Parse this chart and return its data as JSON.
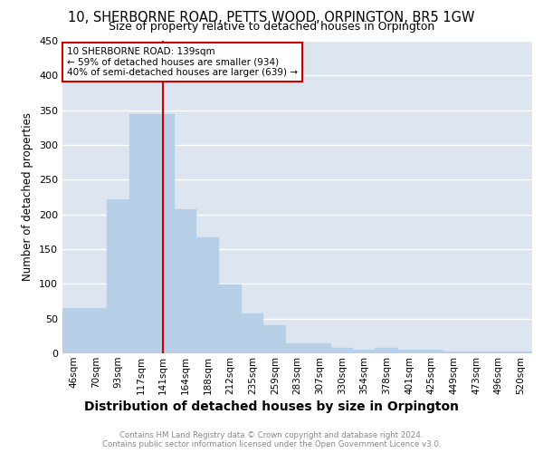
{
  "title": "10, SHERBORNE ROAD, PETTS WOOD, ORPINGTON, BR5 1GW",
  "subtitle": "Size of property relative to detached houses in Orpington",
  "xlabel": "Distribution of detached houses by size in Orpington",
  "ylabel": "Number of detached properties",
  "categories": [
    "46sqm",
    "70sqm",
    "93sqm",
    "117sqm",
    "141sqm",
    "164sqm",
    "188sqm",
    "212sqm",
    "235sqm",
    "259sqm",
    "283sqm",
    "307sqm",
    "330sqm",
    "354sqm",
    "378sqm",
    "401sqm",
    "425sqm",
    "449sqm",
    "473sqm",
    "496sqm",
    "520sqm"
  ],
  "values": [
    65,
    65,
    222,
    345,
    345,
    208,
    167,
    99,
    57,
    41,
    15,
    15,
    8,
    5,
    8,
    5,
    5,
    2,
    2,
    2,
    3
  ],
  "bar_color": "#b8cfe8",
  "bar_edgecolor": "#b8cfe8",
  "bar_width": 1.0,
  "vline_x": 4,
  "vline_color": "#cc0000",
  "annotation_text": "10 SHERBORNE ROAD: 139sqm\n← 59% of detached houses are smaller (934)\n40% of semi-detached houses are larger (639) →",
  "annotation_box_color": "white",
  "annotation_box_edgecolor": "#cc0000",
  "ylim": [
    0,
    450
  ],
  "yticks": [
    0,
    50,
    100,
    150,
    200,
    250,
    300,
    350,
    400,
    450
  ],
  "background_color": "#dde6f0",
  "grid_color": "white",
  "title_fontsize": 10.5,
  "subtitle_fontsize": 9.0,
  "xlabel_fontsize": 10.0,
  "ylabel_fontsize": 8.5,
  "footer_line1": "Contains HM Land Registry data © Crown copyright and database right 2024.",
  "footer_line2": "Contains public sector information licensed under the Open Government Licence v3.0."
}
